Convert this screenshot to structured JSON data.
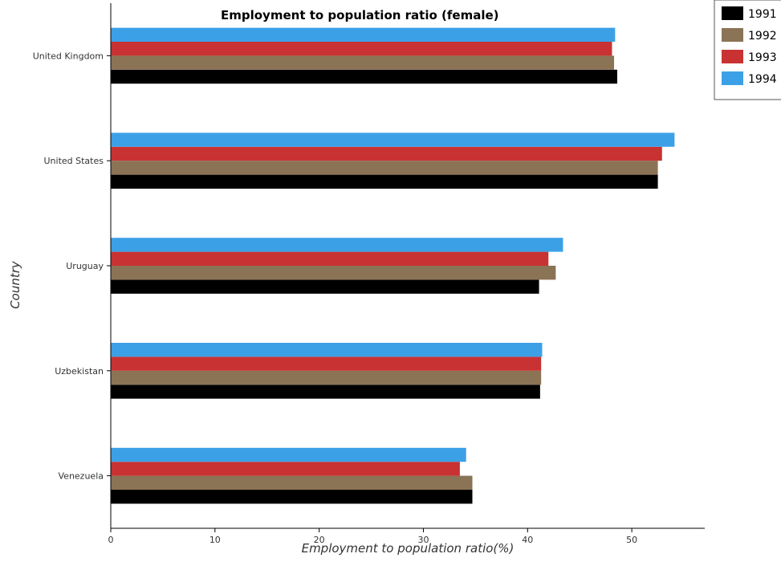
{
  "chart_data": {
    "type": "bar",
    "orientation": "horizontal",
    "title": "Employment to population ratio (female)",
    "xlabel": "Employment to population ratio(%)",
    "ylabel": "Country",
    "categories": [
      "United Kingdom",
      "United States",
      "Uruguay",
      "Uzbekistan",
      "Venezuela"
    ],
    "xlim": [
      0,
      57
    ],
    "xticks": [
      0,
      10,
      20,
      30,
      40,
      50
    ],
    "series": [
      {
        "name": "1991",
        "color": "#000000",
        "values": [
          48.6,
          52.5,
          41.1,
          41.2,
          34.7
        ]
      },
      {
        "name": "1992",
        "color": "#8b7355",
        "values": [
          48.3,
          52.5,
          42.7,
          41.3,
          34.7
        ]
      },
      {
        "name": "1993",
        "color": "#c83232",
        "values": [
          48.1,
          52.9,
          42.0,
          41.3,
          33.5
        ]
      },
      {
        "name": "1994",
        "color": "#3ca0e6",
        "values": [
          48.4,
          54.1,
          43.4,
          41.4,
          34.1
        ]
      }
    ],
    "legend_position": "top-right",
    "grid": false
  }
}
